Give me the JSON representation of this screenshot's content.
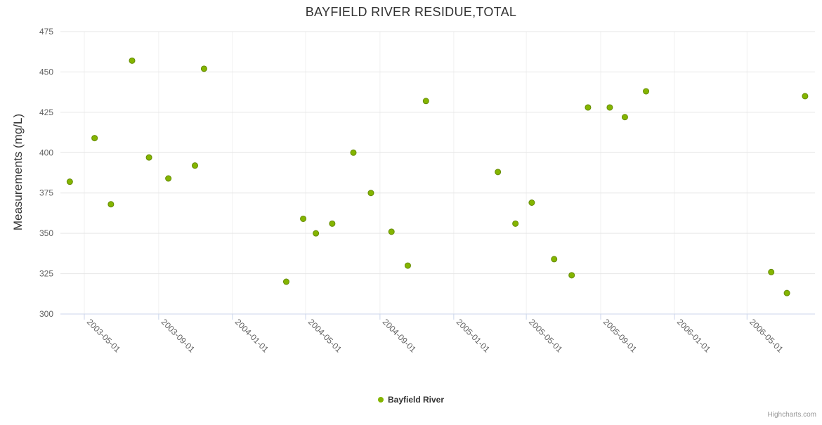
{
  "page": {
    "credits": "Highcharts.com"
  },
  "chart_data": {
    "type": "scatter",
    "title": "BAYFIELD RIVER RESIDUE,TOTAL",
    "xlabel": "",
    "ylabel": "Measurements (mg/L)",
    "ylim": [
      300,
      475
    ],
    "y_ticks": [
      300,
      325,
      350,
      375,
      400,
      425,
      450,
      475
    ],
    "x_ticks": [
      "2003-05-01",
      "2003-09-01",
      "2004-01-01",
      "2004-05-01",
      "2004-09-01",
      "2005-01-01",
      "2005-05-01",
      "2005-09-01",
      "2006-01-01",
      "2006-05-01"
    ],
    "grid": true,
    "legend_position": "bottom-center",
    "colors": {
      "grid_line": "#e6e6e6",
      "x_grid_line": "#f0f0f0",
      "axis_line": "#ccd6eb",
      "tick_label": "#606060",
      "point_fill": "#84b500",
      "point_stroke": "#648a00"
    },
    "series": [
      {
        "name": "Bayfield River",
        "color": "#84b500",
        "points": [
          {
            "date": "2003-04-07",
            "value": 382
          },
          {
            "date": "2003-05-18",
            "value": 409
          },
          {
            "date": "2003-06-14",
            "value": 368
          },
          {
            "date": "2003-07-19",
            "value": 457
          },
          {
            "date": "2003-08-16",
            "value": 397
          },
          {
            "date": "2003-09-17",
            "value": 384
          },
          {
            "date": "2003-10-31",
            "value": 392
          },
          {
            "date": "2003-11-15",
            "value": 452
          },
          {
            "date": "2004-03-30",
            "value": 320
          },
          {
            "date": "2004-04-27",
            "value": 359
          },
          {
            "date": "2004-05-18",
            "value": 350
          },
          {
            "date": "2004-06-14",
            "value": 356
          },
          {
            "date": "2004-07-19",
            "value": 400
          },
          {
            "date": "2004-08-17",
            "value": 375
          },
          {
            "date": "2004-09-20",
            "value": 351
          },
          {
            "date": "2004-10-17",
            "value": 330
          },
          {
            "date": "2004-11-16",
            "value": 432
          },
          {
            "date": "2005-03-15",
            "value": 388
          },
          {
            "date": "2005-04-13",
            "value": 356
          },
          {
            "date": "2005-05-10",
            "value": 369
          },
          {
            "date": "2005-06-16",
            "value": 334
          },
          {
            "date": "2005-07-15",
            "value": 324
          },
          {
            "date": "2005-08-11",
            "value": 428
          },
          {
            "date": "2005-09-16",
            "value": 428
          },
          {
            "date": "2005-10-11",
            "value": 422
          },
          {
            "date": "2005-11-15",
            "value": 438
          },
          {
            "date": "2006-06-10",
            "value": 326
          },
          {
            "date": "2006-07-06",
            "value": 313
          },
          {
            "date": "2006-08-05",
            "value": 435
          }
        ]
      }
    ]
  }
}
